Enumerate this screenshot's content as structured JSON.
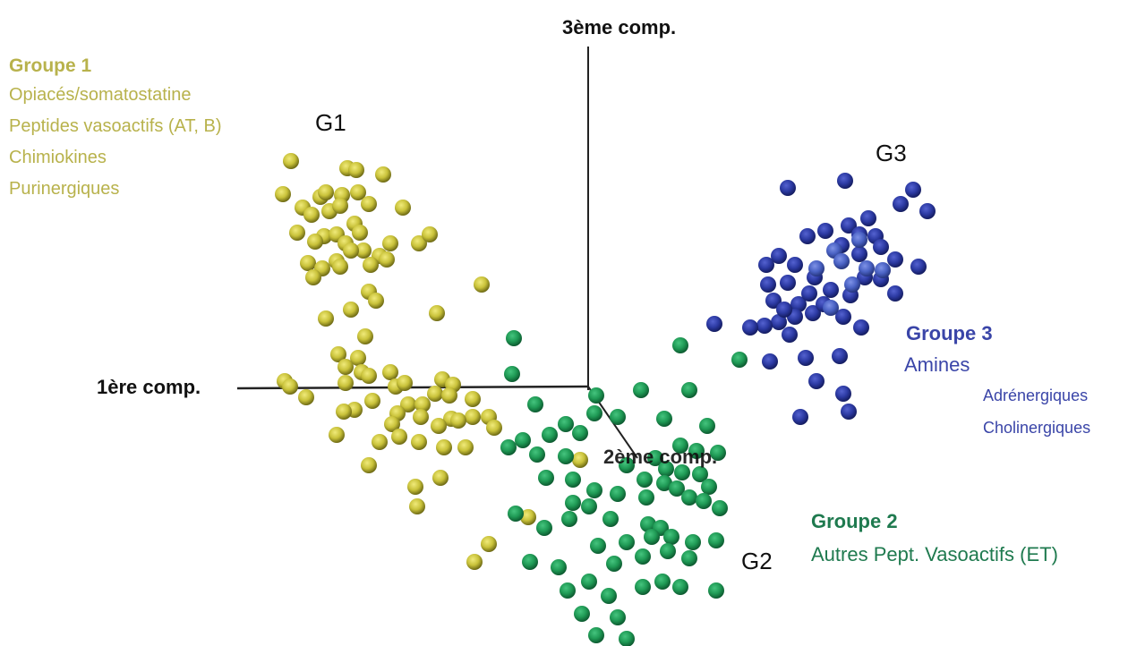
{
  "chart_data": {
    "type": "scatter",
    "projection": "3d",
    "axes": {
      "comp1_label": "1ère comp.",
      "comp2_label": "2ème comp.",
      "comp3_label": "3ème comp."
    },
    "colors": {
      "group1": "#c9c23a",
      "group2": "#1f9a55",
      "group3": "#2c3aa3",
      "group3_light": "#4a62c4",
      "group1_text": "#b5b04a",
      "group2_text": "#1f7a4f",
      "group3_text": "#3a45a8",
      "axis": "#222222"
    },
    "groups": [
      {
        "id": "g1",
        "cluster_label": "G1",
        "legend_title": "Groupe 1",
        "legend_items": [
          "Opiacés/somatostatine",
          "Peptides vasoactifs (AT, B)",
          "Chimiokines",
          "Purinergiques"
        ]
      },
      {
        "id": "g2",
        "cluster_label": "G2",
        "legend_title": "Groupe 2",
        "legend_items": [
          "Autres Pept. Vasoactifs (ET)"
        ]
      },
      {
        "id": "g3",
        "cluster_label": "G3",
        "legend_title": "Groupe 3",
        "legend_items": [
          "Amines"
        ],
        "legend_subitems": [
          "Adrénergiques",
          "Cholinergiques"
        ]
      }
    ]
  }
}
